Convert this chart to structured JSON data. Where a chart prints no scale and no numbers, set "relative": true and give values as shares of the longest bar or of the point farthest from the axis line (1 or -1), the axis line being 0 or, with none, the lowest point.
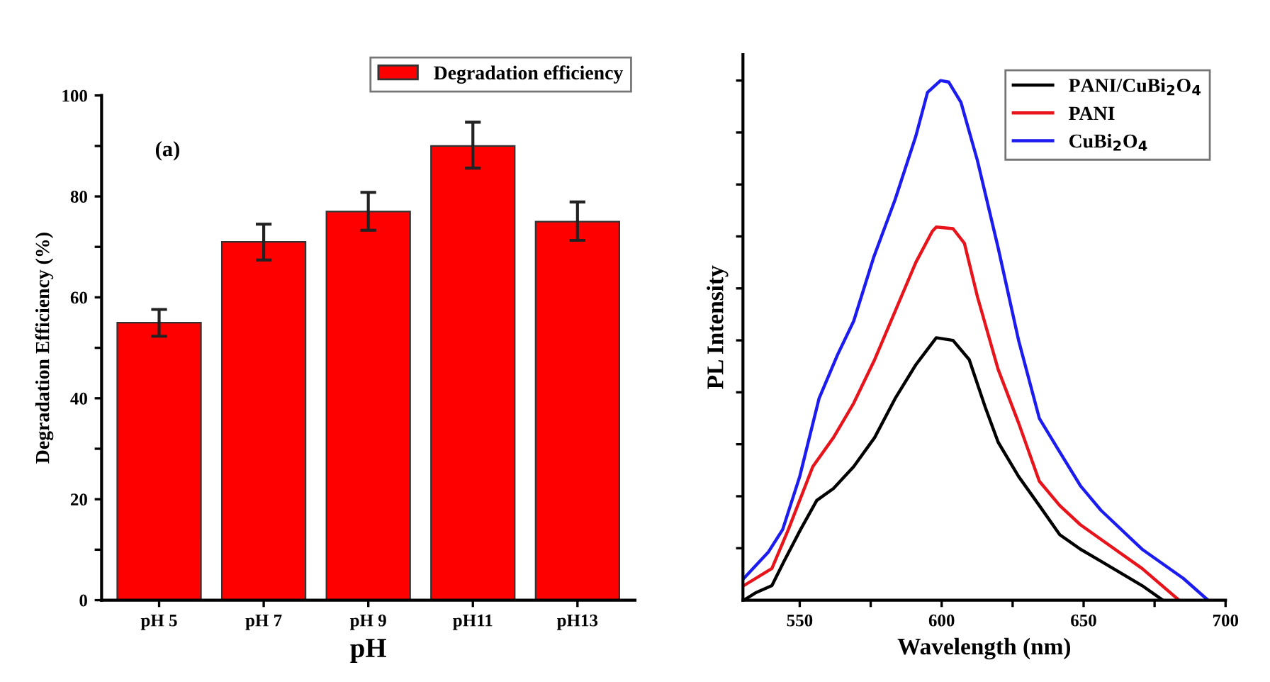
{
  "chart_data": [
    {
      "type": "bar",
      "xlabel": "pH",
      "ylabel": "Degradation Efficiency (%)",
      "annotations": [
        "(a)"
      ],
      "categories": [
        "pH 5",
        "pH 7",
        "pH 9",
        "pH11",
        "pH13"
      ],
      "series": [
        {
          "name": "Degradation efficiency",
          "color": "#ff0000",
          "values": [
            55,
            71,
            77,
            90,
            75
          ],
          "errors": [
            [
              52.3,
              57.6
            ],
            [
              67.4,
              74.5
            ],
            [
              73.3,
              80.8
            ],
            [
              85.6,
              94.7
            ],
            [
              71.3,
              78.9
            ]
          ]
        }
      ],
      "ylim": [
        0,
        100
      ],
      "yticks": [
        0,
        {
          "value": 10,
          "label": null
        },
        20,
        {
          "value": 30,
          "label": null
        },
        40,
        {
          "value": 50,
          "label": null
        },
        60,
        {
          "value": 70,
          "label": null
        },
        80,
        {
          "value": 90,
          "label": null
        },
        100
      ],
      "legend": "top right",
      "grid": false
    },
    {
      "type": "line",
      "xlabel": "Wavelength (nm)",
      "ylabel": "PL Intensity",
      "relative": true,
      "xlim": [
        530,
        700
      ],
      "xticks": [
        550,
        {
          "value": 575,
          "label": null
        },
        600,
        {
          "value": 625,
          "label": null
        },
        650,
        {
          "value": 675,
          "label": null
        },
        700
      ],
      "legend": "top right",
      "grid": false,
      "tick_labels": "x",
      "series": [
        {
          "name": "PANI/CuBi$_{2}$O$_{4}$",
          "color": "#000000",
          "x": [
            530.3,
            534.4,
            540.2,
            544.5,
            550.3,
            556,
            561.9,
            569,
            576.4,
            583.6,
            590.9,
            598.1,
            604,
            609.7,
            615.5,
            619.9,
            627.1,
            634.4,
            641.6,
            648.9,
            656.1,
            670.6,
            677.9
          ],
          "values": [
            0,
            0.014,
            0.028,
            0.075,
            0.136,
            0.192,
            0.215,
            0.257,
            0.313,
            0.388,
            0.453,
            0.505,
            0.5,
            0.463,
            0.369,
            0.304,
            0.238,
            0.182,
            0.126,
            0.098,
            0.075,
            0.028,
            0
          ]
        },
        {
          "name": "PANI",
          "color": "#e8141c",
          "x": [
            530.3,
            540.2,
            546,
            554.6,
            561.9,
            569,
            576.4,
            583.6,
            590.9,
            596.7,
            598.1,
            604,
            608,
            612.6,
            619.9,
            627.1,
            634.4,
            641.6,
            648.9,
            656.1,
            670.6,
            683.6
          ],
          "values": [
            0.028,
            0.061,
            0.136,
            0.257,
            0.313,
            0.379,
            0.463,
            0.556,
            0.65,
            0.71,
            0.718,
            0.715,
            0.687,
            0.584,
            0.444,
            0.341,
            0.229,
            0.182,
            0.145,
            0.117,
            0.061,
            0
          ]
        },
        {
          "name": "CuBi$_{2}$O$_{4}$",
          "color": "#1c1cf0",
          "x": [
            530.3,
            539,
            544,
            550,
            556.8,
            563.3,
            569,
            576,
            583.6,
            590.9,
            595,
            599.6,
            602.5,
            606.8,
            612.6,
            619.9,
            627.1,
            634.4,
            641.6,
            648.9,
            656.1,
            670.6,
            685.1,
            693.8
          ],
          "values": [
            0.042,
            0.093,
            0.136,
            0.238,
            0.388,
            0.472,
            0.537,
            0.659,
            0.771,
            0.893,
            0.977,
            1.0,
            0.997,
            0.958,
            0.846,
            0.678,
            0.5,
            0.35,
            0.285,
            0.22,
            0.173,
            0.098,
            0.042,
            0
          ]
        }
      ]
    }
  ]
}
